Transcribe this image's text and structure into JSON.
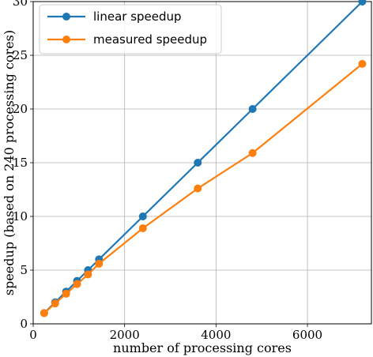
{
  "chart_data": {
    "type": "line",
    "title": "",
    "xlabel": "number of processing cores",
    "ylabel": "speedup (based on 240 processing cores)",
    "xlim": [
      0,
      7400
    ],
    "ylim": [
      0,
      30
    ],
    "xticks": [
      0,
      2000,
      4000,
      6000
    ],
    "yticks": [
      0,
      5,
      10,
      15,
      20,
      25,
      30
    ],
    "grid": true,
    "legend_position": "top-left",
    "series": [
      {
        "name": "linear speedup",
        "color": "#1f77b4",
        "x": [
          240,
          480,
          720,
          960,
          1200,
          1440,
          2400,
          3600,
          4800,
          7200
        ],
        "y": [
          1,
          2,
          3,
          4,
          5,
          6,
          10,
          15,
          20,
          30
        ]
      },
      {
        "name": "measured speedup",
        "color": "#ff7f0e",
        "x": [
          240,
          480,
          720,
          960,
          1200,
          1440,
          2400,
          3600,
          4800,
          7200
        ],
        "y": [
          1,
          1.9,
          2.8,
          3.7,
          4.6,
          5.6,
          8.9,
          12.6,
          15.9,
          24.2
        ]
      }
    ]
  }
}
